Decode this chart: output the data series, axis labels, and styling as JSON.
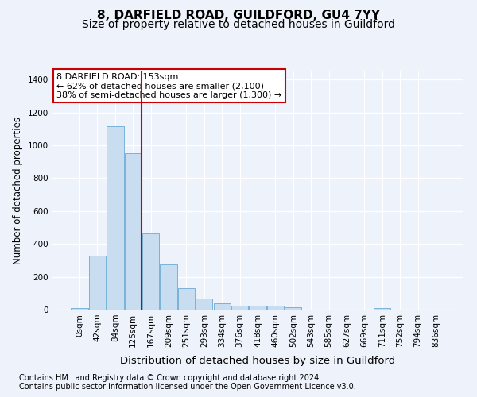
{
  "title1": "8, DARFIELD ROAD, GUILDFORD, GU4 7YY",
  "title2": "Size of property relative to detached houses in Guildford",
  "xlabel": "Distribution of detached houses by size in Guildford",
  "ylabel": "Number of detached properties",
  "footnote1": "Contains HM Land Registry data © Crown copyright and database right 2024.",
  "footnote2": "Contains public sector information licensed under the Open Government Licence v3.0.",
  "bar_labels": [
    "0sqm",
    "42sqm",
    "84sqm",
    "125sqm",
    "167sqm",
    "209sqm",
    "251sqm",
    "293sqm",
    "334sqm",
    "376sqm",
    "418sqm",
    "460sqm",
    "502sqm",
    "543sqm",
    "585sqm",
    "627sqm",
    "669sqm",
    "711sqm",
    "752sqm",
    "794sqm",
    "836sqm"
  ],
  "bar_values": [
    8,
    330,
    1115,
    950,
    465,
    275,
    130,
    70,
    40,
    22,
    25,
    25,
    15,
    0,
    0,
    0,
    0,
    12,
    0,
    0,
    0
  ],
  "bar_color": "#c9ddf0",
  "bar_edge_color": "#6aaad4",
  "property_line_x": 3.5,
  "annotation_line1": "8 DARFIELD ROAD: 153sqm",
  "annotation_line2": "← 62% of detached houses are smaller (2,100)",
  "annotation_line3": "38% of semi-detached houses are larger (1,300) →",
  "annotation_box_color": "#ffffff",
  "annotation_box_edge_color": "#cc0000",
  "vline_color": "#cc0000",
  "ylim": [
    0,
    1450
  ],
  "yticks": [
    0,
    200,
    400,
    600,
    800,
    1000,
    1200,
    1400
  ],
  "bg_color": "#edf2fb",
  "grid_color": "#ffffff",
  "title1_fontsize": 11,
  "title2_fontsize": 10,
  "xlabel_fontsize": 9.5,
  "ylabel_fontsize": 8.5,
  "tick_fontsize": 7.5,
  "footnote_fontsize": 7.0,
  "annotation_fontsize": 8.0
}
